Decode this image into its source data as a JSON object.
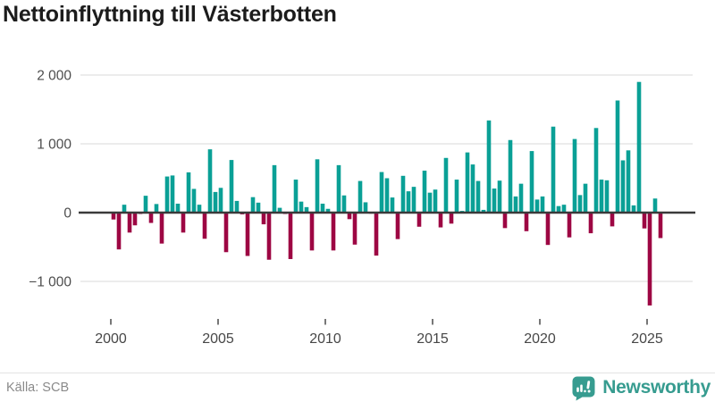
{
  "title": "Nettoinflyttning till Västerbotten",
  "source": "Källa: SCB",
  "brand": "Newsworthy",
  "colors": {
    "positive": "#0aa096",
    "negative": "#9d0643",
    "grid": "#e6e6e6",
    "zero_line": "#3a3a3a",
    "axis_text": "#4d4d4d",
    "title_text": "#1c1c1c",
    "source_text": "#8a8a8a",
    "brand_teal": "#379c90",
    "background": "#ffffff"
  },
  "chart_data": {
    "type": "bar",
    "title": "Nettoinflyttning till Västerbotten",
    "frequency": "quarterly",
    "start_period": "2000 Q1",
    "end_period": "2025 Q3",
    "x_tick_years": [
      2000,
      2005,
      2010,
      2015,
      2020,
      2025
    ],
    "x_tick_labels": [
      "2000",
      "2005",
      "2010",
      "2015",
      "2020",
      "2025"
    ],
    "y_ticks": [
      2000,
      1000,
      0,
      -1000
    ],
    "y_tick_labels": [
      "2 000",
      "1 000",
      "0",
      "−1 000"
    ],
    "ylim": [
      -1500,
      2100
    ],
    "grid": true,
    "legend": false,
    "values": [
      -100,
      -535,
      115,
      -290,
      -185,
      -20,
      245,
      -150,
      125,
      -450,
      525,
      540,
      130,
      -290,
      585,
      345,
      115,
      -380,
      920,
      300,
      360,
      -575,
      765,
      170,
      -25,
      -630,
      225,
      145,
      -170,
      -685,
      690,
      70,
      -20,
      -675,
      480,
      160,
      80,
      -550,
      775,
      130,
      55,
      -550,
      690,
      250,
      -95,
      -465,
      460,
      150,
      -15,
      -625,
      590,
      500,
      220,
      -385,
      535,
      310,
      375,
      -205,
      610,
      290,
      335,
      -215,
      795,
      -160,
      480,
      25,
      875,
      700,
      460,
      40,
      1340,
      350,
      465,
      -225,
      1055,
      235,
      420,
      -270,
      895,
      190,
      235,
      -470,
      1250,
      95,
      115,
      -360,
      1070,
      255,
      420,
      -300,
      1230,
      480,
      470,
      -200,
      1630,
      760,
      905,
      105,
      1900,
      -230,
      -1350,
      205,
      -370
    ]
  }
}
